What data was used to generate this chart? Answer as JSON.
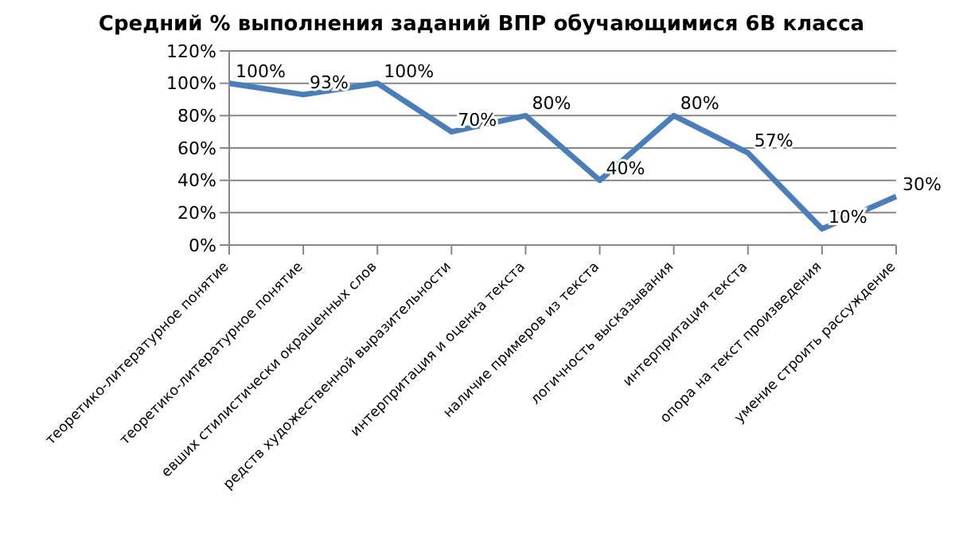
{
  "chart_data": {
    "type": "line",
    "title": "Средний % выполнения заданий ВПР обучающимися 6В класса",
    "categories": [
      "теоретико-литературное понятие",
      "теоретико-литературное понятие",
      "евших стилистически окрашенных слов",
      "редств художественной выразительности",
      "интерпритация и оценка текста",
      "наличие примеров из текста",
      "логичность высказывания",
      "интерпритация текста",
      "опора на текст произведения",
      "умение строить рассуждение"
    ],
    "series": [
      {
        "color": "#4a7ebb",
        "values": [
          100,
          93,
          100,
          70,
          80,
          40,
          80,
          57,
          10,
          30
        ],
        "value_labels": [
          "100%",
          "93%",
          "100%",
          "70%",
          "80%",
          "40%",
          "80%",
          "57%",
          "10%",
          "30%"
        ]
      }
    ],
    "ylim": [
      0,
      120
    ],
    "yticks": [
      {
        "value": 0,
        "label": "0%"
      },
      {
        "value": 20,
        "label": "20%"
      },
      {
        "value": 40,
        "label": "40%"
      },
      {
        "value": 60,
        "label": "60%"
      },
      {
        "value": 80,
        "label": "80%"
      },
      {
        "value": 100,
        "label": "100%"
      },
      {
        "value": 120,
        "label": "120%"
      }
    ],
    "grid": "y",
    "legend": false,
    "marker": "none",
    "line_style": "solid"
  }
}
